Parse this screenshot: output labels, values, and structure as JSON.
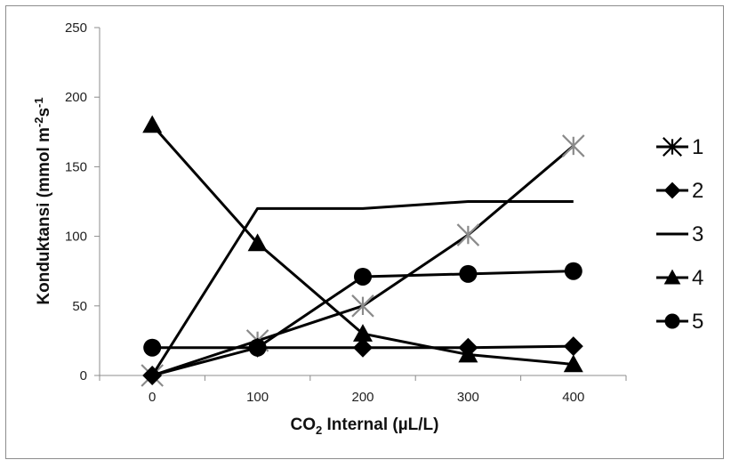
{
  "chart_data": {
    "type": "line",
    "title": "",
    "xlabel": {
      "base": "CO",
      "sub": "2",
      "rest": " Internal (µL/L)"
    },
    "ylabel": {
      "base": "Konduktansi (mmol m",
      "sup1": "-2",
      "mid": "s",
      "sup2": "-1"
    },
    "categories": [
      "0",
      "100",
      "200",
      "300",
      "400"
    ],
    "ylim": [
      0,
      250
    ],
    "yticks": [
      "0",
      "50",
      "100",
      "150",
      "200",
      "250"
    ],
    "grid": false,
    "legend_position": "right",
    "series": [
      {
        "name": "1",
        "marker": "star",
        "marker_color": "#8a8a8a",
        "values": [
          0,
          25,
          50,
          101,
          165
        ]
      },
      {
        "name": "2",
        "marker": "diamond",
        "marker_color": "#000000",
        "values": [
          0,
          20,
          20,
          20,
          21
        ]
      },
      {
        "name": "3",
        "marker": "none",
        "marker_color": "#000000",
        "values": [
          0,
          120,
          120,
          125,
          125
        ]
      },
      {
        "name": "4",
        "marker": "triangle",
        "marker_color": "#000000",
        "values": [
          180,
          95,
          30,
          15,
          8
        ]
      },
      {
        "name": "5",
        "marker": "circle",
        "marker_color": "#000000",
        "values": [
          20,
          20,
          71,
          73,
          75
        ]
      }
    ],
    "line_color": "#000000"
  }
}
